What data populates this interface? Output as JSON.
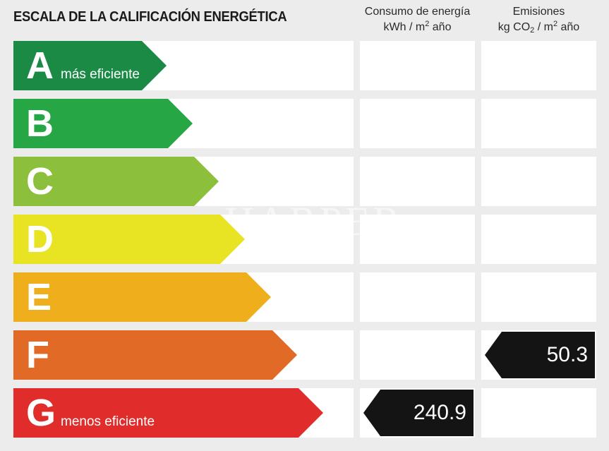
{
  "title": "ESCALA DE LA CALIFICACIÓN ENERGÉTICA",
  "consumption_header": {
    "line1": "Consumo de energía",
    "unit_prefix": "kWh / m",
    "unit_sup": "2",
    "unit_suffix": " año"
  },
  "emissions_header": {
    "line1": "Emisiones",
    "unit_prefix": "kg CO",
    "unit_sub": "2",
    "unit_mid": " / m",
    "unit_sup": "2",
    "unit_suffix": " año"
  },
  "ratings": [
    {
      "letter": "A",
      "label": "más eficiente",
      "color": "#1a8a45"
    },
    {
      "letter": "B",
      "label": "",
      "color": "#26a644"
    },
    {
      "letter": "C",
      "label": "",
      "color": "#8cc03c"
    },
    {
      "letter": "D",
      "label": "",
      "color": "#e8e424"
    },
    {
      "letter": "E",
      "label": "",
      "color": "#efae1c"
    },
    {
      "letter": "F",
      "label": "",
      "color": "#e06a26"
    },
    {
      "letter": "G",
      "label": "menos eficiente",
      "color": "#e02c2a"
    }
  ],
  "consumption_marker": {
    "value": "240.9",
    "rating": "G"
  },
  "emissions_marker": {
    "value": "50.3",
    "rating": "F"
  },
  "watermark": "HARPER"
}
